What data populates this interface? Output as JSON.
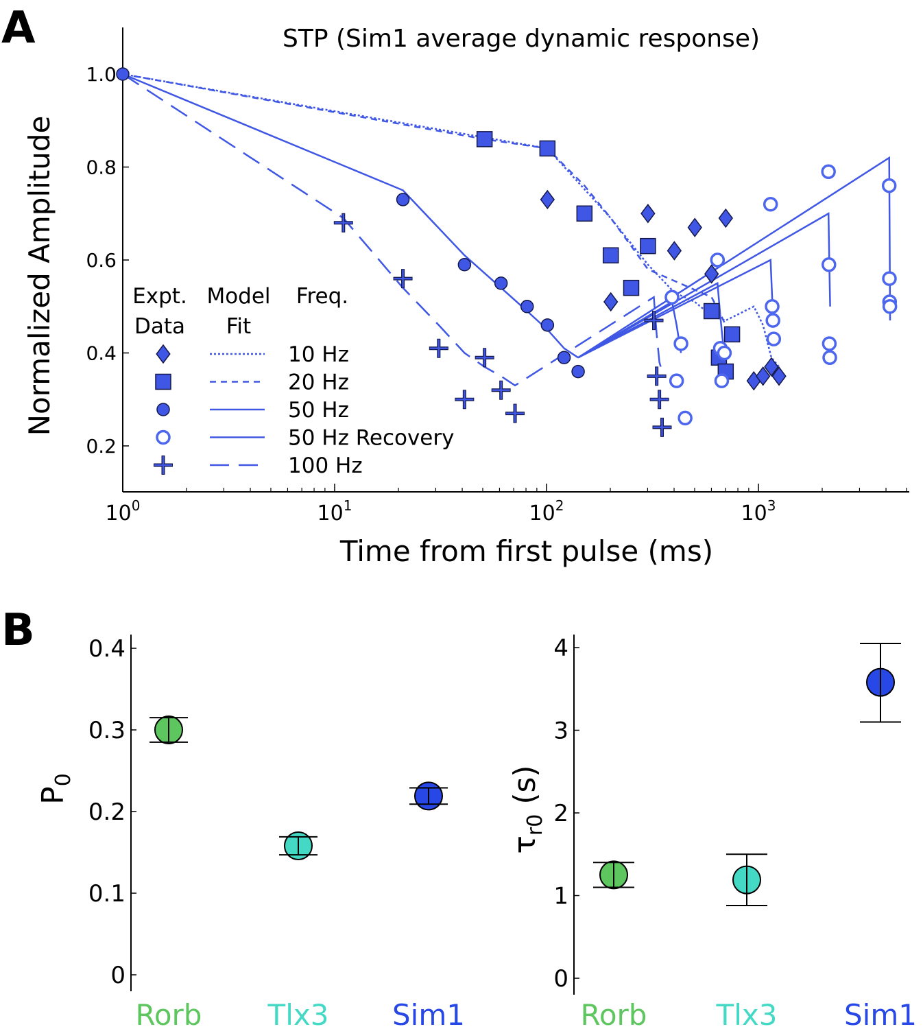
{
  "panel_a": {
    "letter": "A"
  },
  "panel_b": {
    "letter": "B"
  },
  "chart_data": [
    {
      "id": "stp",
      "type": "scatter",
      "title": "STP (Sim1 average dynamic response)",
      "xlabel": "Time from first pulse (ms)",
      "ylabel": "Normalized Amplitude",
      "xscale": "log",
      "xlim": [
        1,
        5500
      ],
      "ylim": [
        0.1,
        1.08
      ],
      "yticks": [
        "0.2",
        "0.4",
        "0.6",
        "0.8",
        "1.0"
      ],
      "xticks": [
        {
          "base": "10",
          "exp": "0",
          "value": 1
        },
        {
          "base": "10",
          "exp": "1",
          "value": 10
        },
        {
          "base": "10",
          "exp": "2",
          "value": 100
        },
        {
          "base": "10",
          "exp": "3",
          "value": 1000
        }
      ],
      "legend": {
        "placement": "lower-left",
        "headers": {
          "data": "Expt.\nData",
          "model": "Model\nFit",
          "freq": "Freq."
        },
        "entries": [
          {
            "label": "10 Hz",
            "marker": "diamond",
            "line": "dotted"
          },
          {
            "label": "20 Hz",
            "marker": "square",
            "line": "short-dash"
          },
          {
            "label": "50 Hz",
            "marker": "circle",
            "line": "solid"
          },
          {
            "label": "50 Hz Recovery",
            "marker": "open-circle",
            "line": "solid"
          },
          {
            "label": "100 Hz",
            "marker": "plus",
            "line": "long-dash"
          }
        ]
      },
      "colors": {
        "series": "#3f57e4",
        "marker_edge": "#14184a",
        "open": "#4d66ee"
      },
      "series": [
        {
          "name": "10 Hz",
          "marker": "diamond",
          "points": [
            [
              101,
              0.73
            ],
            [
              201,
              0.51
            ],
            [
              301,
              0.7
            ],
            [
              401,
              0.62
            ],
            [
              501,
              0.67
            ],
            [
              601,
              0.57
            ],
            [
              701,
              0.69
            ],
            [
              951,
              0.34
            ],
            [
              1051,
              0.35
            ],
            [
              1151,
              0.37
            ],
            [
              1251,
              0.35
            ]
          ],
          "model": [
            [
              1,
              1.0
            ],
            [
              101,
              0.84
            ],
            [
              201,
              0.69
            ],
            [
              301,
              0.59
            ],
            [
              401,
              0.53
            ],
            [
              501,
              0.51
            ],
            [
              601,
              0.48
            ],
            [
              701,
              0.47
            ],
            [
              951,
              0.5
            ],
            [
              1051,
              0.46
            ],
            [
              1151,
              0.39
            ],
            [
              1251,
              0.37
            ]
          ]
        },
        {
          "name": "20 Hz",
          "marker": "square",
          "points": [
            [
              51,
              0.86
            ],
            [
              101,
              0.84
            ],
            [
              151,
              0.7
            ],
            [
              201,
              0.61
            ],
            [
              251,
              0.54
            ],
            [
              301,
              0.63
            ],
            [
              601,
              0.49
            ],
            [
              651,
              0.39
            ],
            [
              701,
              0.36
            ],
            [
              751,
              0.44
            ]
          ],
          "model": [
            [
              1,
              1.0
            ],
            [
              51,
              0.86
            ],
            [
              101,
              0.84
            ],
            [
              151,
              0.76
            ],
            [
              201,
              0.69
            ],
            [
              251,
              0.63
            ],
            [
              301,
              0.58
            ],
            [
              601,
              0.52
            ],
            [
              651,
              0.49
            ],
            [
              701,
              0.46
            ],
            [
              751,
              0.44
            ]
          ]
        },
        {
          "name": "50 Hz",
          "marker": "circle",
          "points": [
            [
              1,
              1.0
            ],
            [
              21,
              0.73
            ],
            [
              41,
              0.59
            ],
            [
              61,
              0.55
            ],
            [
              81,
              0.5
            ],
            [
              101,
              0.46
            ],
            [
              121,
              0.39
            ],
            [
              141,
              0.36
            ]
          ],
          "model": [
            [
              1,
              1.0
            ],
            [
              21,
              0.75
            ],
            [
              41,
              0.61
            ],
            [
              61,
              0.54
            ],
            [
              81,
              0.49
            ],
            [
              101,
              0.45
            ],
            [
              121,
              0.41
            ],
            [
              141,
              0.39
            ]
          ]
        },
        {
          "name": "50 Hz Recovery",
          "marker": "open-circle",
          "points": [
            [
              391,
              0.52
            ],
            [
              411,
              0.34
            ],
            [
              431,
              0.42
            ],
            [
              451,
              0.26
            ],
            [
              641,
              0.6
            ],
            [
              661,
              0.41
            ],
            [
              671,
              0.34
            ],
            [
              691,
              0.4
            ],
            [
              1141,
              0.72
            ],
            [
              1161,
              0.5
            ],
            [
              1171,
              0.47
            ],
            [
              1181,
              0.43
            ],
            [
              2141,
              0.79
            ],
            [
              2151,
              0.59
            ],
            [
              2161,
              0.42
            ],
            [
              2171,
              0.39
            ],
            [
              4141,
              0.76
            ],
            [
              4151,
              0.56
            ],
            [
              4161,
              0.51
            ],
            [
              4171,
              0.5
            ]
          ],
          "model": [
            [
              [
                141,
                0.39
              ],
              [
                391,
                0.51
              ],
              [
                411,
                0.46
              ],
              [
                431,
                0.4
              ]
            ],
            [
              [
                141,
                0.39
              ],
              [
                641,
                0.55
              ],
              [
                661,
                0.48
              ],
              [
                681,
                0.42
              ]
            ],
            [
              [
                141,
                0.39
              ],
              [
                1141,
                0.6
              ],
              [
                1161,
                0.52
              ],
              [
                1181,
                0.46
              ]
            ],
            [
              [
                141,
                0.39
              ],
              [
                2141,
                0.7
              ],
              [
                2161,
                0.59
              ],
              [
                2181,
                0.5
              ]
            ],
            [
              [
                141,
                0.39
              ],
              [
                4141,
                0.82
              ],
              [
                4161,
                0.67
              ],
              [
                4181,
                0.47
              ]
            ]
          ]
        },
        {
          "name": "100 Hz",
          "marker": "plus",
          "points": [
            [
              11,
              0.68
            ],
            [
              21,
              0.56
            ],
            [
              31,
              0.41
            ],
            [
              41,
              0.3
            ],
            [
              51,
              0.39
            ],
            [
              61,
              0.32
            ],
            [
              71,
              0.27
            ],
            [
              321,
              0.47
            ],
            [
              331,
              0.35
            ],
            [
              341,
              0.3
            ],
            [
              351,
              0.24
            ]
          ],
          "model": [
            [
              1,
              1.0
            ],
            [
              11,
              0.69
            ],
            [
              21,
              0.54
            ],
            [
              31,
              0.46
            ],
            [
              41,
              0.4
            ],
            [
              51,
              0.37
            ],
            [
              61,
              0.35
            ],
            [
              71,
              0.33
            ],
            [
              321,
              0.52
            ],
            [
              331,
              0.44
            ],
            [
              341,
              0.38
            ],
            [
              351,
              0.36
            ]
          ]
        }
      ]
    },
    {
      "id": "p0",
      "type": "scatter",
      "ylabel": "P",
      "ylabel_sub": "0",
      "ylim": [
        0,
        0.42
      ],
      "yticks": [
        "0",
        "0.1",
        "0.2",
        "0.3",
        "0.4"
      ],
      "categories": [
        "Rorb",
        "Tlx3",
        "Sim1"
      ],
      "colors": [
        "#5dc65f",
        "#44d9c5",
        "#2747e6"
      ],
      "values": [
        0.3,
        0.158,
        0.219
      ],
      "err_low": [
        0.285,
        0.147,
        0.209
      ],
      "err_high": [
        0.315,
        0.169,
        0.229
      ]
    },
    {
      "id": "tau",
      "type": "scatter",
      "ylabel": "τ",
      "ylabel_sub": "r0",
      "ylabel_unit": " (s)",
      "ylim": [
        0,
        4.2
      ],
      "yticks": [
        "0",
        "1",
        "2",
        "3",
        "4"
      ],
      "categories": [
        "Rorb",
        "Tlx3",
        "Sim1"
      ],
      "colors": [
        "#5dc65f",
        "#44d9c5",
        "#2747e6"
      ],
      "values": [
        1.25,
        1.19,
        3.58
      ],
      "err_low": [
        1.1,
        0.88,
        3.1
      ],
      "err_high": [
        1.4,
        1.5,
        4.05
      ]
    }
  ]
}
